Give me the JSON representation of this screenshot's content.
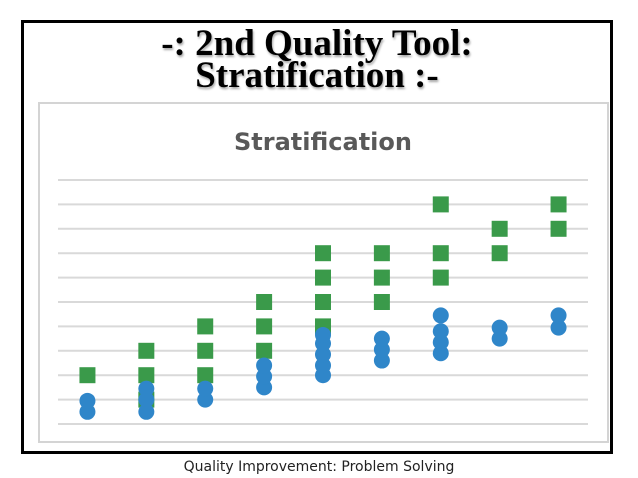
{
  "slide": {
    "title_line1": "-: 2nd Quality Tool:",
    "title_line2": "Stratification :-",
    "footer": "Quality Improvement: Problem Solving"
  },
  "colors": {
    "green": "#3a9a4a",
    "blue": "#2f86c9",
    "gridline": "#d9d9d9",
    "title_gray": "#595959"
  },
  "chart_data": {
    "type": "scatter",
    "title": "Stratification",
    "ylim": [
      0,
      10
    ],
    "grid": true,
    "legend": "none",
    "axis_labels_shown": false,
    "x": [
      1,
      2,
      3,
      4,
      5,
      6,
      7,
      8,
      9
    ],
    "series": [
      {
        "color": "#3a9a4a",
        "marker": "square",
        "points": [
          [
            1,
            2
          ],
          [
            2,
            1
          ],
          [
            2,
            2
          ],
          [
            2,
            3
          ],
          [
            3,
            2
          ],
          [
            3,
            3
          ],
          [
            3,
            4
          ],
          [
            4,
            3
          ],
          [
            4,
            4
          ],
          [
            4,
            5
          ],
          [
            5,
            4
          ],
          [
            5,
            5
          ],
          [
            5,
            6
          ],
          [
            5,
            7
          ],
          [
            6,
            5
          ],
          [
            6,
            6
          ],
          [
            6,
            7
          ],
          [
            7,
            6
          ],
          [
            7,
            7
          ],
          [
            7,
            9
          ],
          [
            8,
            7
          ],
          [
            8,
            8
          ],
          [
            9,
            8
          ],
          [
            9,
            9
          ]
        ]
      },
      {
        "color": "#2f86c9",
        "marker": "circle",
        "points": [
          [
            1,
            0.5
          ],
          [
            1,
            0.95
          ],
          [
            2,
            0.5
          ],
          [
            2,
            1.0
          ],
          [
            2,
            1.45
          ],
          [
            3,
            1.0
          ],
          [
            3,
            1.45
          ],
          [
            4,
            1.5
          ],
          [
            4,
            1.95
          ],
          [
            4,
            2.4
          ],
          [
            5,
            2.0
          ],
          [
            5,
            2.4
          ],
          [
            5,
            2.85
          ],
          [
            5,
            3.3
          ],
          [
            5,
            3.65
          ],
          [
            6,
            2.6
          ],
          [
            6,
            3.05
          ],
          [
            6,
            3.5
          ],
          [
            7,
            2.9
          ],
          [
            7,
            3.35
          ],
          [
            7,
            3.8
          ],
          [
            7,
            4.45
          ],
          [
            8,
            3.5
          ],
          [
            8,
            3.95
          ],
          [
            9,
            3.95
          ],
          [
            9,
            4.45
          ]
        ]
      }
    ]
  }
}
